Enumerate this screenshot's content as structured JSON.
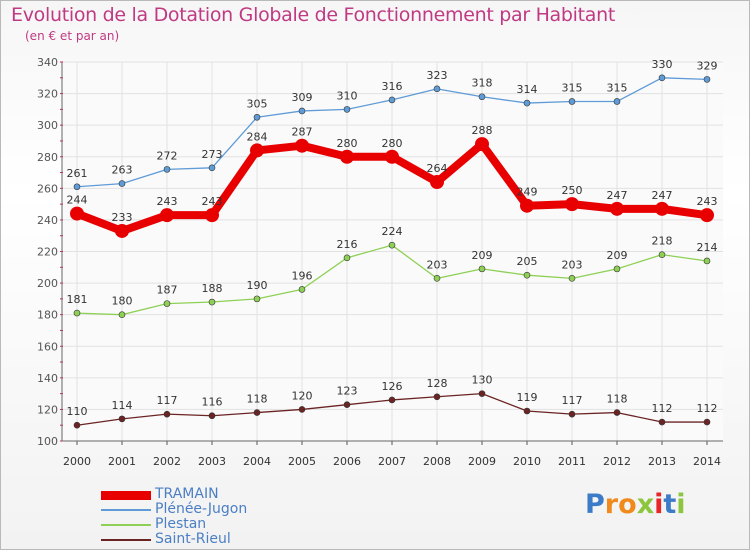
{
  "chart_data": {
    "type": "line",
    "title": "Evolution de la Dotation Globale de Fonctionnement par Habitant",
    "subtitle": "(en € et par an)",
    "x": [
      2000,
      2001,
      2002,
      2003,
      2004,
      2005,
      2006,
      2007,
      2008,
      2009,
      2010,
      2011,
      2012,
      2013,
      2014
    ],
    "y_ticks": [
      100,
      120,
      140,
      160,
      180,
      200,
      220,
      240,
      260,
      280,
      300,
      320,
      340
    ],
    "ylim": [
      100,
      340
    ],
    "grid": true,
    "legend_position": "bottom-left",
    "series": [
      {
        "name": "TRAMAIN",
        "color": "#e80000",
        "values": [
          244,
          233,
          243,
          243,
          284,
          287,
          280,
          280,
          264,
          288,
          249,
          250,
          247,
          247,
          243
        ]
      },
      {
        "name": "Plénée-Jugon",
        "color": "#5f9bd6",
        "values": [
          261,
          263,
          272,
          273,
          305,
          309,
          310,
          316,
          323,
          318,
          314,
          315,
          315,
          330,
          329
        ]
      },
      {
        "name": "Plestan",
        "color": "#8ed055",
        "values": [
          181,
          180,
          187,
          188,
          190,
          196,
          216,
          224,
          203,
          209,
          205,
          203,
          209,
          218,
          214
        ]
      },
      {
        "name": "Saint-Rieul",
        "color": "#6b2424",
        "values": [
          110,
          114,
          117,
          116,
          118,
          120,
          123,
          126,
          128,
          130,
          119,
          117,
          118,
          112,
          112
        ]
      }
    ]
  },
  "legend": {
    "tramain": "TRAMAIN",
    "plenee": "Plénée-Jugon",
    "plestan": "Plestan",
    "saint_rieul": "Saint-Rieul"
  },
  "logo": {
    "text": [
      "P",
      "r",
      "o",
      "x",
      "i",
      "t",
      "i"
    ],
    "colors": [
      "#3b7bc8",
      "#f08a1c",
      "#f08a1c",
      "#8cc63f",
      "#e8262a",
      "#3b7bc8",
      "#8cc63f"
    ]
  }
}
